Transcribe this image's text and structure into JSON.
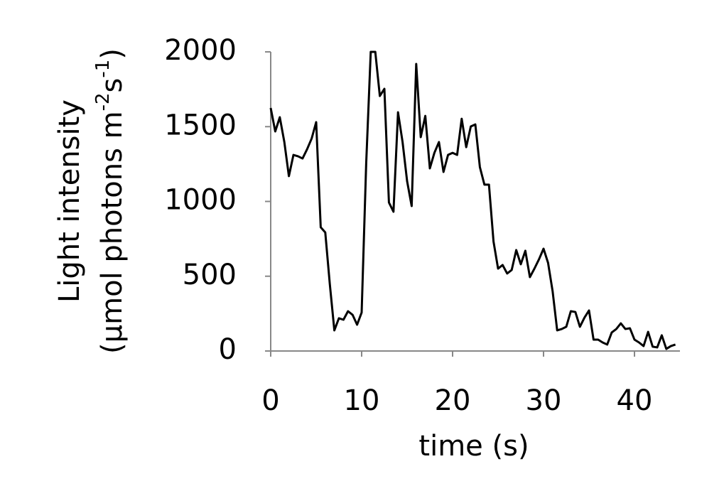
{
  "chart_data": {
    "type": "line",
    "xlabel": "time (s)",
    "ylabel": {
      "line1": "Light intensity",
      "line2": [
        "(µmol photons m",
        "-2",
        "s",
        "-1",
        ")"
      ]
    },
    "x": [
      0,
      0.5,
      1,
      1.5,
      2,
      2.5,
      3,
      3.5,
      4,
      4.5,
      5,
      5.5,
      6,
      6.5,
      7,
      7.5,
      8,
      8.5,
      9,
      9.5,
      10,
      10.5,
      11,
      11.5,
      12,
      12.5,
      13,
      13.5,
      14,
      14.5,
      15,
      15.5,
      16,
      16.5,
      17,
      17.5,
      18,
      18.5,
      19,
      19.5,
      20,
      20.5,
      21,
      21.5,
      22,
      22.5,
      23,
      23.5,
      24,
      24.5,
      25,
      25.5,
      26,
      26.5,
      27,
      27.5,
      28,
      28.5,
      29,
      29.5,
      30,
      30.5,
      31,
      31.5,
      32,
      32.5,
      33,
      33.5,
      34,
      34.5,
      35,
      35.5,
      36,
      36.5,
      37,
      37.5,
      38,
      38.5,
      39,
      39.5,
      40,
      40.5,
      41,
      41.5,
      42,
      42.5,
      43,
      43.5,
      44,
      44.5
    ],
    "values": [
      1625,
      1468,
      1563,
      1397,
      1169,
      1311,
      1302,
      1287,
      1349,
      1420,
      1530,
      827,
      793,
      447,
      138,
      219,
      209,
      266,
      242,
      176,
      257,
      1254,
      2000,
      2000,
      1705,
      1753,
      993,
      931,
      1596,
      1397,
      1135,
      969,
      1919,
      1430,
      1572,
      1221,
      1325,
      1397,
      1197,
      1311,
      1325,
      1311,
      1553,
      1363,
      1501,
      1515,
      1230,
      1112,
      1112,
      732,
      551,
      575,
      518,
      542,
      675,
      580,
      670,
      494,
      551,
      613,
      684,
      589,
      399,
      138,
      147,
      162,
      266,
      261,
      162,
      223,
      271,
      76,
      76,
      57,
      43,
      124,
      147,
      185,
      147,
      152,
      76,
      57,
      33,
      128,
      29,
      24,
      105,
      14,
      33,
      43
    ],
    "color": "#000000",
    "xlim": [
      0,
      45
    ],
    "xticks": [
      0,
      10,
      20,
      30,
      40
    ],
    "ylim": [
      0,
      2000
    ],
    "yticks": [
      0,
      500,
      1000,
      1500,
      2000
    ]
  }
}
